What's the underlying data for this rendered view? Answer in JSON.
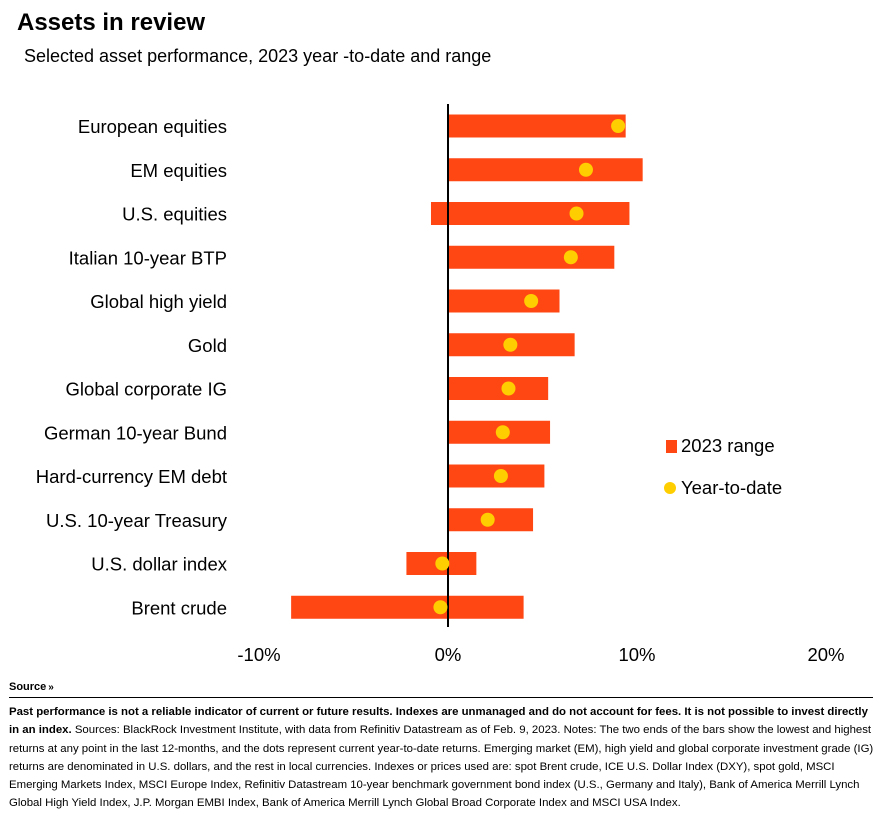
{
  "title": "Assets in review",
  "subtitle": "Selected asset performance, 2023 year -to-date and range",
  "chart_data": {
    "type": "bar",
    "orientation": "horizontal",
    "categories": [
      "European equities",
      "EM equities",
      "U.S. equities",
      "Italian 10-year BTP",
      "Global high yield",
      "Gold",
      "Global corporate IG",
      "German 10-year Bund",
      "Hard-currency EM debt",
      "U.S. 10-year Treasury",
      "U.S. dollar index",
      "Brent crude"
    ],
    "series": [
      {
        "name": "2023 range",
        "color": "#ff4713",
        "range_low": [
          0.0,
          0.0,
          -0.9,
          0.0,
          0.0,
          0.0,
          0.0,
          0.0,
          0.0,
          0.0,
          -2.2,
          -8.3
        ],
        "range_high": [
          9.4,
          10.3,
          9.6,
          8.8,
          5.9,
          6.7,
          5.3,
          5.4,
          5.1,
          4.5,
          1.5,
          4.0
        ]
      },
      {
        "name": "Year-to-date",
        "color": "#ffce00",
        "values": [
          9.0,
          7.3,
          6.8,
          6.5,
          4.4,
          3.3,
          3.2,
          2.9,
          2.8,
          2.1,
          -0.3,
          -0.4
        ]
      }
    ],
    "xlim": [
      -10,
      20
    ],
    "xticks": [
      "-10%",
      "0%",
      "10%",
      "20%"
    ],
    "grid": false,
    "legend": "right"
  },
  "source": {
    "label": "Source",
    "chevron": "»"
  },
  "disclaimer": {
    "bold": "Past performance is not a reliable indicator of current or future results. Indexes are unmanaged and do not account for fees. It is not possible to invest directly in an index.",
    "text": " Sources: BlackRock Investment Institute, with data from Refinitiv Datastream as of Feb. 9, 2023. Notes: The two ends of the bars show the lowest and highest returns at any point in the last 12-months, and the dots represent current year-to-date returns. Emerging market (EM), high yield and global corporate investment grade (IG) returns are denominated in U.S. dollars, and the rest in local currencies. Indexes or prices used are: spot Brent crude, ICE U.S. Dollar Index (DXY), spot gold, MSCI Emerging Markets Index, MSCI Europe Index, Refinitiv Datastream 10-year benchmark government bond index (U.S., Germany and Italy), Bank of America Merrill Lynch Global High Yield Index, J.P. Morgan EMBI Index, Bank of America Merrill Lynch Global Broad Corporate Index and MSCI USA Index."
  }
}
